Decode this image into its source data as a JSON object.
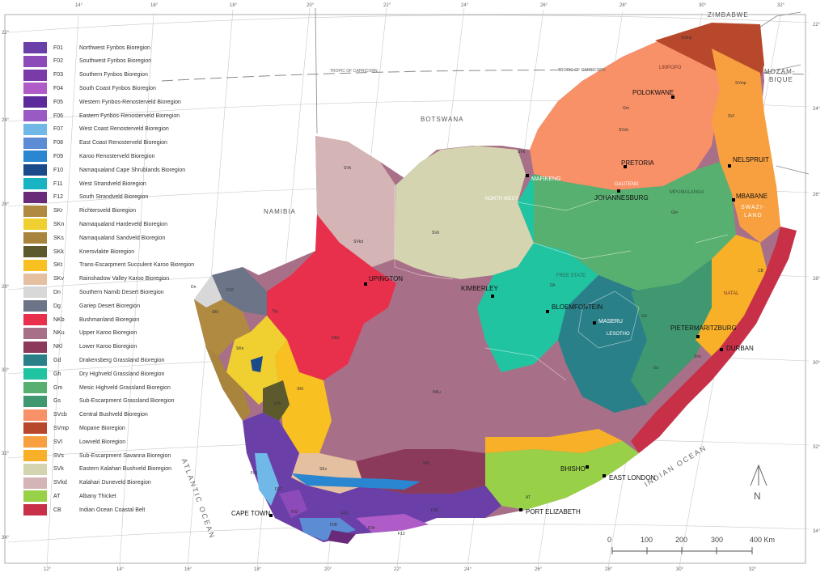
{
  "legend": [
    {
      "code": "F01",
      "name": "Northwest Fynbos Bioregion",
      "color": "#6a3fa8"
    },
    {
      "code": "F02",
      "name": "Southwest Fynbos Bioregion",
      "color": "#8c4bb8"
    },
    {
      "code": "F03",
      "name": "Southern Fynbos Bioregion",
      "color": "#7a3aa8"
    },
    {
      "code": "F04",
      "name": "South Coast Fynbos Bioregion",
      "color": "#b05cc8"
    },
    {
      "code": "F05",
      "name": "Western Fynbos-Renosterveld Bioregion",
      "color": "#5c2a9a"
    },
    {
      "code": "F06",
      "name": "Eastern Fynbos-Renosterveld Bioregion",
      "color": "#9a5ac4"
    },
    {
      "code": "F07",
      "name": "West Coast Renosterveld Bioregion",
      "color": "#6fb8e8"
    },
    {
      "code": "F08",
      "name": "East Coast Renosterveld Bioregion",
      "color": "#5c8cd4"
    },
    {
      "code": "F09",
      "name": "Karoo Renosterveld Bioregion",
      "color": "#2a86d0"
    },
    {
      "code": "F10",
      "name": "Namaqualand Cape Shrublands Bioregion",
      "color": "#1a4a8a"
    },
    {
      "code": "F11",
      "name": "West Strandveld Bioregion",
      "color": "#18b4c4"
    },
    {
      "code": "F12",
      "name": "South Strandveld Bioregion",
      "color": "#6a2a7a"
    },
    {
      "code": "SKr",
      "name": "Richtersveld Bioregion",
      "color": "#b08a40"
    },
    {
      "code": "SKn",
      "name": "Namaqualand Hardeveld Bioregion",
      "color": "#f0d030"
    },
    {
      "code": "SKs",
      "name": "Namaqualand Sandveld Bioregion",
      "color": "#a8843c"
    },
    {
      "code": "SKk",
      "name": "Knersvlakte Bioregion",
      "color": "#5c5a2c"
    },
    {
      "code": "SKt",
      "name": "Trans-Escarpment Succulent Karoo Bioregion",
      "color": "#f8c020"
    },
    {
      "code": "SKv",
      "name": "Rainshadow Valley Karoo Bioregion",
      "color": "#e4c0a0"
    },
    {
      "code": "Dn",
      "name": "Southern Namib Desert Bioregion",
      "color": "#d8d8d8"
    },
    {
      "code": "Dg",
      "name": "Gariep Desert Bioregion",
      "color": "#6c7488"
    },
    {
      "code": "NKb",
      "name": "Bushmanland Bioregion",
      "color": "#e8304c"
    },
    {
      "code": "NKu",
      "name": "Upper Karoo Bioregion",
      "color": "#a87088"
    },
    {
      "code": "NKl",
      "name": "Lower Karoo Bioregion",
      "color": "#8c3a5c"
    },
    {
      "code": "Gd",
      "name": "Drakensberg Grassland Bioregion",
      "color": "#2a8088"
    },
    {
      "code": "Gh",
      "name": "Dry Highveld Grassland Bioregion",
      "color": "#20c4a0"
    },
    {
      "code": "Gm",
      "name": "Mesic Highveld Grassland Bioregion",
      "color": "#58b070"
    },
    {
      "code": "Gs",
      "name": "Sub-Escarpment Grassland Bioregion",
      "color": "#409870"
    },
    {
      "code": "SVcb",
      "name": "Central Bushveld Bioregion",
      "color": "#f89068"
    },
    {
      "code": "SVmp",
      "name": "Mopane Bioregion",
      "color": "#b8482c"
    },
    {
      "code": "SVl",
      "name": "Lowveld Bioregion",
      "color": "#f8a040"
    },
    {
      "code": "SVs",
      "name": "Sub-Escarpment Savanna Bioregion",
      "color": "#f8b028"
    },
    {
      "code": "SVk",
      "name": "Eastern Kalahari Bushveld Bioregion",
      "color": "#d4d4b0"
    },
    {
      "code": "SVkd",
      "name": "Kalahari Duneveld Bioregion",
      "color": "#d4b4b4"
    },
    {
      "code": "AT",
      "name": "Albany Thicket",
      "color": "#98d048"
    },
    {
      "code": "CB",
      "name": "Indian Ocean Coastal Belt",
      "color": "#c83048"
    }
  ],
  "countries": {
    "botswana": "BOTSWANA",
    "namibia": "NAMIBIA",
    "zimbabwe": "ZIMBABWE",
    "mozambique_1": "MOZAM-",
    "mozambique_2": "BIQUE",
    "swaziland_1": "SWAZI-",
    "swaziland_2": "LAND"
  },
  "provinces": {
    "limpopo": "LIMPOPO",
    "north_west": "NORTH WEST",
    "gauteng": "GAUTENG",
    "mpumalanga": "MPUMALANGA",
    "free_state": "FREE STATE",
    "lesotho": "LESOTHO",
    "natal": "NATAL"
  },
  "cities": {
    "polokwane": "POLOKWANE",
    "pretoria": "PRETORIA",
    "johannesburg": "JOHANNESBURG",
    "nelspruit": "NELSPRUIT",
    "mbabane": "MBABANE",
    "mafikeng": "MAFIKENG",
    "upington": "UPINGTON",
    "kimberley": "KIMBERLEY",
    "bloemfontein": "BLOEMFONTEIN",
    "maseru": "MASERU",
    "pietermaritzburg": "PIETERMARITZBURG",
    "durban": "DURBAN",
    "bhisho": "BHISHO",
    "east_london": "EAST LONDON",
    "port_elizabeth": "PORT ELIZABETH",
    "cape_town": "CAPE TOWN"
  },
  "oceans": {
    "atlantic": "ATLANTIC OCEAN",
    "indian": "INDIAN OCEAN"
  },
  "tropic": {
    "left": "TROPIC OF CAPRICORN",
    "right": "TROPIC OF CAPRICORN"
  },
  "region_codes": {
    "svmp": "SVmp",
    "svmp2": "SVmp",
    "svcb": "SVcb",
    "gm": "Gm",
    "svl": "SVl",
    "svk": "SVk",
    "svk2": "SVk",
    "svkd": "SVkd",
    "svk3": "SVk",
    "nkb": "NKb",
    "nku": "NKu",
    "nkl": "NKl",
    "gh": "Gh",
    "gd": "Gd",
    "gs": "Gs",
    "svs": "SVs",
    "cb": "CB",
    "at": "AT",
    "skr": "SKr",
    "skn": "SKn",
    "skk": "SKk",
    "skt": "SKt",
    "skv": "SKv",
    "dn": "Dn",
    "dg": "Dg",
    "f10": "F10",
    "f01": "F01",
    "f07": "F07",
    "f02": "F02",
    "f03": "F03",
    "f04": "F04",
    "f08": "F08",
    "f12": "F12",
    "f06": "F06",
    "gm2": "Gm"
  },
  "lon_labels": [
    "12°",
    "14°",
    "16°",
    "18°",
    "20°",
    "22°",
    "24°",
    "26°",
    "28°",
    "30°",
    "32°"
  ],
  "lat_labels": [
    "22°",
    "24°",
    "26°",
    "28°",
    "30°",
    "32°",
    "34°"
  ],
  "scale": {
    "values": [
      "0",
      "100",
      "200",
      "300",
      "400 Km"
    ]
  },
  "north": "N"
}
